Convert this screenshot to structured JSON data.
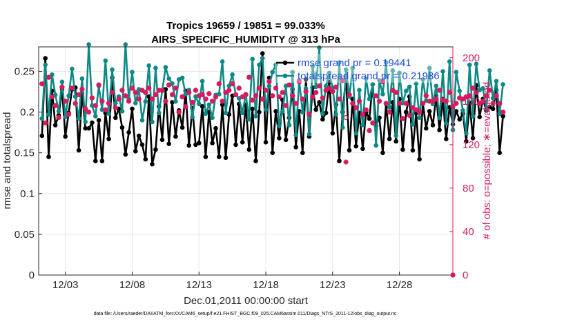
{
  "chart_data": {
    "type": "line",
    "title": "Tropics 19659 / 19851 = 99.033%",
    "subtitle": "AIRS_SPECIFIC_HUMIDITY @ 313 hPa",
    "xlabel": "Dec.01,2011 00:00:00 start",
    "ylabel": "rmse and totalspread",
    "y2label": "# of obs: o=possible; ∗=evaluated",
    "footer": "data file: /Users/raeder/DAI/ATM_forcXX/CAM6_setup/f.e21.FHIST_BGC.f09_025.CAM6assim.011/Diags_NTrS_2011-12/obs_diag_output.nc",
    "xlim": [
      1,
      32
    ],
    "ylim": [
      0,
      0.28
    ],
    "y2lim": [
      0,
      210
    ],
    "x_ticks": [
      3,
      8,
      13,
      18,
      23,
      28
    ],
    "x_tick_labels": [
      "12/03",
      "12/08",
      "12/13",
      "12/18",
      "12/23",
      "12/28"
    ],
    "y_ticks": [
      0,
      0.05,
      0.1,
      0.15,
      0.2,
      0.25
    ],
    "y_tick_labels": [
      "0",
      "0.05",
      "0.1",
      "0.15",
      "0.2",
      "0.25"
    ],
    "y2_ticks": [
      0,
      40,
      80,
      120,
      160,
      200
    ],
    "y2_tick_labels": [
      "0",
      "40",
      "80",
      "120",
      "160",
      "200"
    ],
    "x_start": 1.25,
    "x_step": 0.25,
    "series": [
      {
        "name": "rmse grand pr = 0.19441",
        "color": "#000000",
        "values": [
          0.171,
          0.266,
          0.145,
          0.226,
          0.184,
          0.196,
          0.228,
          0.17,
          0.199,
          0.228,
          0.23,
          0.153,
          0.223,
          0.18,
          0.18,
          0.187,
          0.14,
          0.19,
          0.14,
          0.199,
          0.167,
          0.242,
          0.193,
          0.204,
          0.181,
          0.148,
          0.175,
          0.204,
          0.152,
          0.171,
          0.16,
          0.142,
          0.219,
          0.136,
          0.154,
          0.207,
          0.166,
          0.228,
          0.161,
          0.212,
          0.17,
          0.202,
          0.181,
          0.226,
          0.159,
          0.205,
          0.16,
          0.162,
          0.207,
          0.145,
          0.2,
          0.162,
          0.18,
          0.145,
          0.209,
          0.144,
          0.197,
          0.22,
          0.16,
          0.21,
          0.163,
          0.209,
          0.154,
          0.204,
          0.14,
          0.2,
          0.272,
          0.163,
          0.242,
          0.15,
          0.201,
          0.168,
          0.215,
          0.166,
          0.193,
          0.228,
          0.157,
          0.201,
          0.15,
          0.24,
          0.17,
          0.23,
          0.203,
          0.212,
          0.191,
          0.199,
          0.237,
          0.174,
          0.209,
          0.14,
          0.2,
          0.243,
          0.153,
          0.216,
          0.158,
          0.199,
          0.155,
          0.2,
          0.192,
          0.234,
          0.183,
          0.193,
          0.15,
          0.21,
          0.167,
          0.212,
          0.164,
          0.216,
          0.154,
          0.2,
          0.219,
          0.153,
          0.199,
          0.142,
          0.211,
          0.18,
          0.201,
          0.184,
          0.22,
          0.178,
          0.216,
          0.167,
          0.206,
          0.185,
          0.201,
          0.191,
          0.198,
          0.164,
          0.211,
          0.168,
          0.233,
          0.194,
          0.216,
          0.202,
          0.206,
          0.204,
          0.227,
          0.15,
          0.195
        ]
      },
      {
        "name": "totalspread grand pr = 0.21986",
        "color": "#0e8a86",
        "values": [
          0.192,
          0.258,
          0.197,
          0.246,
          0.221,
          0.201,
          0.237,
          0.194,
          0.22,
          0.253,
          0.219,
          0.192,
          0.241,
          0.188,
          0.283,
          0.208,
          0.195,
          0.232,
          0.203,
          0.263,
          0.198,
          0.252,
          0.211,
          0.219,
          0.201,
          0.283,
          0.216,
          0.249,
          0.211,
          0.228,
          0.19,
          0.213,
          0.257,
          0.188,
          0.254,
          0.199,
          0.226,
          0.255,
          0.241,
          0.235,
          0.213,
          0.24,
          0.242,
          0.222,
          0.227,
          0.194,
          0.219,
          0.21,
          0.238,
          0.198,
          0.209,
          0.193,
          0.221,
          0.222,
          0.262,
          0.199,
          0.232,
          0.246,
          0.221,
          0.217,
          0.199,
          0.222,
          0.191,
          0.265,
          0.195,
          0.258,
          0.266,
          0.203,
          0.232,
          0.249,
          0.258,
          0.183,
          0.201,
          0.232,
          0.184,
          0.249,
          0.172,
          0.239,
          0.2,
          0.229,
          0.173,
          0.256,
          0.231,
          0.279,
          0.198,
          0.232,
          0.248,
          0.23,
          0.197,
          0.261,
          0.181,
          0.252,
          0.219,
          0.254,
          0.174,
          0.227,
          0.184,
          0.241,
          0.216,
          0.234,
          0.159,
          0.239,
          0.222,
          0.261,
          0.206,
          0.251,
          0.171,
          0.248,
          0.211,
          0.226,
          0.231,
          0.185,
          0.235,
          0.193,
          0.24,
          0.214,
          0.254,
          0.21,
          0.232,
          0.193,
          0.25,
          0.186,
          0.262,
          0.178,
          0.249,
          0.226,
          0.202,
          0.174,
          0.258,
          0.195,
          0.259,
          0.227,
          0.229,
          0.204,
          0.251,
          0.217,
          0.238,
          0.198,
          0.234
        ]
      }
    ],
    "obs": {
      "color": "#d81b60",
      "possible": [
        176,
        140,
        182,
        164,
        156,
        145,
        173,
        160,
        148,
        172,
        158,
        166,
        171,
        153,
        150,
        163,
        156,
        175,
        160,
        152,
        158,
        168,
        154,
        162,
        170,
        165,
        160,
        172,
        168,
        162,
        170,
        168,
        172,
        162,
        166,
        170,
        170,
        160,
        175,
        166,
        172,
        150,
        164,
        155,
        168,
        159,
        170,
        165,
        166,
        162,
        167,
        160,
        164,
        176,
        160,
        168,
        170,
        176,
        166,
        172,
        164,
        166,
        182,
        161,
        165,
        172,
        162,
        170,
        178,
        165,
        172,
        164,
        168,
        156,
        175,
        165,
        158,
        178,
        162,
        169,
        148,
        164,
        168,
        174,
        163,
        170,
        172,
        169,
        173,
        162,
        179,
        145,
        166,
        158,
        154,
        160,
        148,
        152,
        133,
        140,
        165,
        160,
        178,
        158,
        150,
        170,
        168,
        158,
        144,
        158,
        147,
        154,
        152,
        150,
        158,
        165,
        160,
        160,
        162,
        170,
        161,
        160,
        168,
        155,
        158,
        163,
        162,
        164,
        165,
        172,
        168,
        158,
        160,
        165,
        170,
        158,
        165,
        158,
        150
      ],
      "evaluated": [
        176,
        140,
        182,
        164,
        156,
        145,
        173,
        160,
        148,
        172,
        158,
        166,
        171,
        153,
        150,
        163,
        156,
        175,
        160,
        152,
        158,
        168,
        154,
        162,
        170,
        165,
        160,
        172,
        168,
        162,
        170,
        168,
        172,
        162,
        166,
        170,
        170,
        160,
        175,
        166,
        172,
        150,
        164,
        155,
        168,
        159,
        170,
        165,
        166,
        162,
        167,
        160,
        164,
        176,
        160,
        168,
        170,
        176,
        166,
        172,
        164,
        166,
        182,
        161,
        165,
        172,
        162,
        170,
        178,
        165,
        172,
        164,
        168,
        156,
        175,
        165,
        158,
        178,
        162,
        169,
        148,
        164,
        168,
        174,
        163,
        170,
        172,
        169,
        173,
        162,
        179,
        104,
        166,
        158,
        154,
        160,
        148,
        152,
        133,
        140,
        165,
        160,
        178,
        158,
        150,
        170,
        168,
        158,
        144,
        158,
        147,
        154,
        152,
        150,
        158,
        165,
        160,
        160,
        162,
        170,
        161,
        160,
        168,
        155,
        158,
        163,
        162,
        164,
        165,
        172,
        168,
        158,
        160,
        165,
        170,
        158,
        165,
        158,
        150
      ],
      "end_marker": {
        "x": 32,
        "possible": 0,
        "evaluated": 0
      }
    }
  }
}
